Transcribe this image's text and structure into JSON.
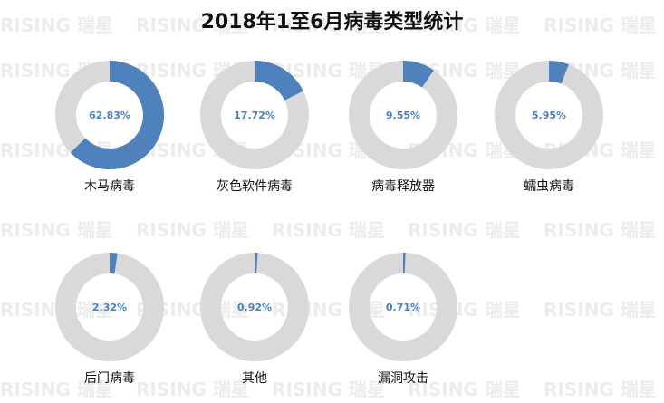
{
  "title": "2018年1至6月病毒类型统计",
  "watermark_text": "RISING 瑞星",
  "chart_data": {
    "type": "pie",
    "variant": "donut-grid",
    "title": "2018年1至6月病毒类型统计",
    "unit": "%",
    "colors": {
      "highlight": "#4f81bd",
      "remainder": "#d9d9d9",
      "label": "#4a7fc1"
    },
    "items": [
      {
        "name": "木马病毒",
        "value": 62.83,
        "label": "62.83%"
      },
      {
        "name": "灰色软件病毒",
        "value": 17.72,
        "label": "17.72%"
      },
      {
        "name": "病毒释放器",
        "value": 9.55,
        "label": "9.55%"
      },
      {
        "name": "蠕虫病毒",
        "value": 5.95,
        "label": "5.95%"
      },
      {
        "name": "后门病毒",
        "value": 2.32,
        "label": "2.32%"
      },
      {
        "name": "其他",
        "value": 0.92,
        "label": "0.92%"
      },
      {
        "name": "漏洞攻击",
        "value": 0.71,
        "label": "0.71%"
      }
    ]
  }
}
